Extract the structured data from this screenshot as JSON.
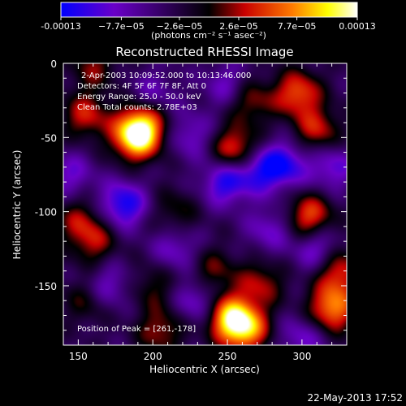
{
  "chart_data": {
    "type": "heatmap",
    "title": "Reconstructed RHESSI Image",
    "xlabel": "Heliocentric X (arcsec)",
    "ylabel": "Heliocentric Y (arcsec)",
    "xlim": [
      140,
      330
    ],
    "ylim": [
      -190,
      0
    ],
    "x_ticks": [
      150,
      200,
      250,
      300
    ],
    "y_ticks": [
      0,
      -50,
      -100,
      -150
    ],
    "colorbar": {
      "label": "(photons cm⁻² s⁻¹ asec⁻²)",
      "range": [
        -0.00013,
        0.00013
      ],
      "tick_labels": [
        "-0.00013",
        "−7.7e−05",
        "−2.6e−05",
        "2.6e−05",
        "7.7e−05",
        "0.00013"
      ],
      "tick_values": [
        -0.00013,
        -7.7e-05,
        -2.6e-05,
        2.6e-05,
        7.7e-05,
        0.00013
      ],
      "colors": [
        "#0000ff",
        "#6a00c8",
        "#000000",
        "#c80000",
        "#ff7a00",
        "#ffff00",
        "#ffffff"
      ]
    },
    "annotations": [
      "2-Apr-2003 10:09:52.000 to 10:13:46.000",
      "Detectors: 4F 5F 6F 7F 8F, Att 0",
      "Energy Range: 25.0 - 50.0 keV",
      "Clean     Total counts: 2.78E+03"
    ],
    "peak_label": "Position of Peak = [261,-178]",
    "peak_position": [
      261,
      -178
    ],
    "sources": [
      {
        "x": 188,
        "y": -50,
        "value": 0.00012
      },
      {
        "x": 193,
        "y": -42,
        "value": 0.0001
      },
      {
        "x": 261,
        "y": -178,
        "value": 0.00013
      },
      {
        "x": 250,
        "y": -170,
        "value": 0.0001
      },
      {
        "x": 320,
        "y": -165,
        "value": 0.00011
      },
      {
        "x": 255,
        "y": -58,
        "value": 9e-05
      },
      {
        "x": 297,
        "y": -20,
        "value": 9e-05
      },
      {
        "x": 310,
        "y": -45,
        "value": 7e-05
      },
      {
        "x": 155,
        "y": -35,
        "value": 7e-05
      },
      {
        "x": 305,
        "y": -103,
        "value": 9e-05
      },
      {
        "x": 325,
        "y": -140,
        "value": 8e-05
      },
      {
        "x": 160,
        "y": -120,
        "value": 6e-05
      },
      {
        "x": 150,
        "y": -105,
        "value": 5e-05
      },
      {
        "x": 265,
        "y": -25,
        "value": 6e-05
      },
      {
        "x": 160,
        "y": -2,
        "value": 5e-05
      },
      {
        "x": 205,
        "y": -180,
        "value": 6e-05
      },
      {
        "x": 240,
        "y": -140,
        "value": 5e-05
      },
      {
        "x": 215,
        "y": -100,
        "value": 4e-05
      },
      {
        "x": 200,
        "y": -150,
        "value": 4e-05
      },
      {
        "x": 272,
        "y": -148,
        "value": 6e-05
      },
      {
        "x": 155,
        "y": -160,
        "value": 4e-05
      },
      {
        "x": 180,
        "y": -95,
        "value": -9e-05
      },
      {
        "x": 248,
        "y": -80,
        "value": -8e-05
      },
      {
        "x": 270,
        "y": -72,
        "value": -7e-05
      },
      {
        "x": 288,
        "y": -68,
        "value": -8e-05
      },
      {
        "x": 320,
        "y": -70,
        "value": -6e-05
      },
      {
        "x": 225,
        "y": -48,
        "value": -5e-05
      },
      {
        "x": 250,
        "y": -15,
        "value": -5e-05
      },
      {
        "x": 145,
        "y": -75,
        "value": -5e-05
      },
      {
        "x": 230,
        "y": -160,
        "value": -6e-05
      },
      {
        "x": 215,
        "y": -125,
        "value": -5e-05
      },
      {
        "x": 170,
        "y": -150,
        "value": -5e-05
      },
      {
        "x": 310,
        "y": -125,
        "value": -6e-05
      },
      {
        "x": 300,
        "y": -185,
        "value": -5e-05
      },
      {
        "x": 200,
        "y": -20,
        "value": -4e-05
      },
      {
        "x": 278,
        "y": -112,
        "value": -5e-05
      }
    ]
  },
  "footer": {
    "timestamp": "22-May-2013 17:52"
  }
}
